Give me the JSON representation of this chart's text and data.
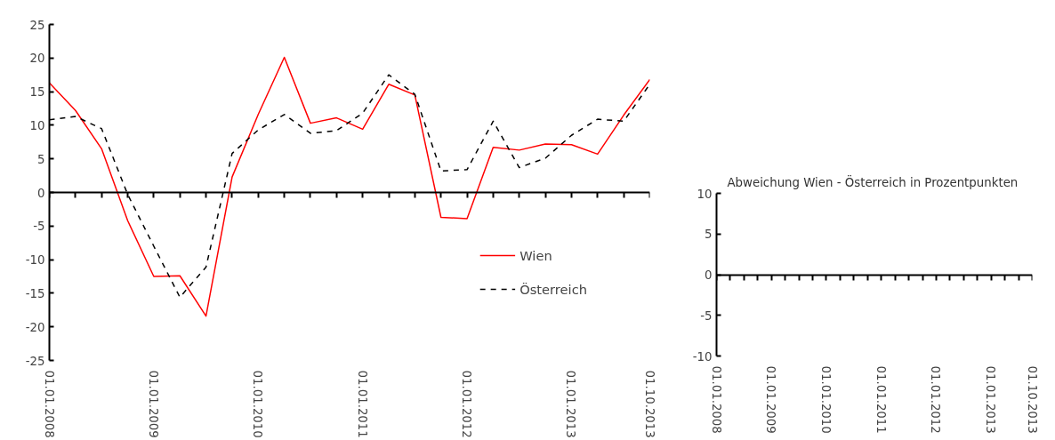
{
  "chart_data": [
    {
      "type": "line",
      "categories": [
        "01.01.2008",
        null,
        null,
        null,
        "01.01.2009",
        null,
        null,
        null,
        "01.01.2010",
        null,
        null,
        null,
        "01.01.2011",
        null,
        null,
        null,
        "01.01.2012",
        null,
        null,
        null,
        "01.01.2013",
        null,
        null,
        "01.10.2013"
      ],
      "series": [
        {
          "name": "Wien",
          "color": "#ff0000",
          "line_style": "solid",
          "values": [
            16.3,
            12.2,
            6.5,
            -4.2,
            -12.5,
            -12.4,
            -18.4,
            2.3,
            11.6,
            20.1,
            10.3,
            11.1,
            9.4,
            16.1,
            14.5,
            -3.7,
            -3.9,
            6.7,
            6.3,
            7.2,
            7.1,
            5.7,
            11.5,
            16.8
          ]
        },
        {
          "name": "Österreich",
          "color": "#000000",
          "line_style": "dashed",
          "values": [
            10.8,
            11.3,
            9.5,
            -0.3,
            -8.0,
            -15.6,
            -11.1,
            5.8,
            9.3,
            11.6,
            8.8,
            9.2,
            11.8,
            17.5,
            14.6,
            3.2,
            3.4,
            10.6,
            3.7,
            5.1,
            8.5,
            10.9,
            10.6,
            16.1
          ]
        }
      ],
      "ylim": [
        -25,
        25
      ],
      "yticks": [
        -25,
        -20,
        -15,
        -10,
        -5,
        0,
        5,
        10,
        15,
        20,
        25
      ],
      "legend": "bottom right",
      "marker": "none"
    },
    {
      "type": "line",
      "title": "Abweichung Wien - Österreich  in Prozentpunkten",
      "categories": [
        "01.01.2008",
        null,
        null,
        null,
        "01.01.2009",
        null,
        null,
        null,
        "01.01.2010",
        null,
        null,
        null,
        "01.01.2011",
        null,
        null,
        null,
        "01.01.2012",
        null,
        null,
        null,
        "01.01.2013",
        null,
        null,
        "01.10.2013"
      ],
      "values": [
        null,
        null,
        null,
        null,
        null,
        null,
        null,
        null,
        null,
        null,
        null,
        null,
        null,
        null,
        null,
        null,
        null,
        null,
        null,
        null,
        null,
        null,
        null,
        null
      ],
      "ylim": [
        -10,
        10
      ],
      "yticks": [
        -10,
        -5,
        0,
        5,
        10
      ]
    }
  ]
}
